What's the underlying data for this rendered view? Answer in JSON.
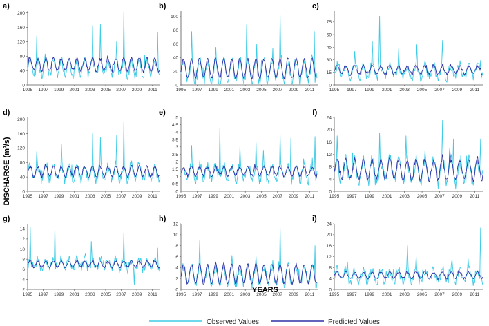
{
  "figure": {
    "xlabel": "YEARS",
    "ylabel": "DISCHARGE (m³/s)",
    "legend": {
      "observed": "Observed Values",
      "predicted": "Predicted Values",
      "position": "bottom-center"
    },
    "colors": {
      "observed": "#3ecbe6",
      "predicted": "#2b2fa6",
      "axis": "#555555"
    }
  },
  "chart_data": [
    {
      "type": "line",
      "panel": "a)",
      "x_ticks": [
        "1995",
        "1997",
        "1999",
        "2001",
        "2003",
        "2005",
        "2007",
        "2009",
        "2011"
      ],
      "y_ticks": [
        "0",
        "40",
        "80",
        "120",
        "160",
        "200"
      ],
      "ylim": [
        0,
        205
      ],
      "series": [
        {
          "name": "Observed Values",
          "base": 48,
          "amp": 20,
          "noise": 14,
          "spikes": [
            [
              1996.2,
              135
            ],
            [
              2003.3,
              165
            ],
            [
              2004.3,
              168
            ],
            [
              2007.3,
              202
            ],
            [
              2011.7,
              145
            ],
            [
              2006.4,
              120
            ]
          ]
        },
        {
          "name": "Predicted Values",
          "base": 56,
          "amp": 17,
          "noise": 5,
          "spikes": []
        }
      ]
    },
    {
      "type": "line",
      "panel": "b)",
      "x_ticks": [
        "1995",
        "1997",
        "1999",
        "2001",
        "2003",
        "2005",
        "2007",
        "2009",
        "2011"
      ],
      "y_ticks": [
        "0",
        "20",
        "40",
        "60",
        "80",
        "100"
      ],
      "ylim": [
        0,
        108
      ],
      "series": [
        {
          "name": "Observed Values",
          "base": 20,
          "amp": 16,
          "noise": 8,
          "spikes": [
            [
              1996.3,
              78
            ],
            [
              2003.2,
              88
            ],
            [
              2007.3,
              102
            ],
            [
              2011.6,
              78
            ],
            [
              1999.3,
              55
            ],
            [
              2004.4,
              60
            ]
          ]
        },
        {
          "name": "Predicted Values",
          "base": 24,
          "amp": 14,
          "noise": 2,
          "spikes": []
        }
      ]
    },
    {
      "type": "line",
      "panel": "c)",
      "x_ticks": [
        "1995",
        "1997",
        "1999",
        "2001",
        "2003",
        "2005",
        "2007",
        "2009",
        "2011"
      ],
      "y_ticks": [
        "0",
        "15",
        "30",
        "45",
        "60",
        "75"
      ],
      "ylim": [
        0,
        88
      ],
      "series": [
        {
          "name": "Observed Values",
          "base": 16,
          "amp": 7,
          "noise": 6,
          "spikes": [
            [
              2000.2,
              82
            ],
            [
              1999.3,
              52
            ],
            [
              2002.3,
              43
            ],
            [
              2004.4,
              48
            ],
            [
              2007.3,
              53
            ],
            [
              1997.3,
              40
            ]
          ]
        },
        {
          "name": "Predicted Values",
          "base": 18,
          "amp": 5,
          "noise": 2,
          "spikes": []
        }
      ]
    },
    {
      "type": "line",
      "panel": "d)",
      "x_ticks": [
        "1995",
        "1997",
        "1999",
        "2001",
        "2003",
        "2005",
        "2007",
        "2009",
        "2011"
      ],
      "y_ticks": [
        "0",
        "40",
        "80",
        "120",
        "160",
        "200"
      ],
      "ylim": [
        0,
        205
      ],
      "series": [
        {
          "name": "Observed Values",
          "base": 52,
          "amp": 20,
          "noise": 14,
          "spikes": [
            [
              1996.2,
              110
            ],
            [
              1999.3,
              130
            ],
            [
              2003.3,
              160
            ],
            [
              2004.3,
              150
            ],
            [
              2007.3,
              192
            ],
            [
              2006.4,
              155
            ]
          ]
        },
        {
          "name": "Predicted Values",
          "base": 55,
          "amp": 14,
          "noise": 4,
          "spikes": []
        }
      ]
    },
    {
      "type": "line",
      "panel": "e)",
      "x_ticks": [
        "1995",
        "1997",
        "1999",
        "2001",
        "2003",
        "2005",
        "2007",
        "2009",
        "2011"
      ],
      "y_ticks": [
        "0",
        "0,5",
        "1",
        "1,5",
        "2",
        "2,5",
        "3",
        "3,5",
        "4",
        "4,5",
        "5"
      ],
      "ylim": [
        0,
        5
      ],
      "series": [
        {
          "name": "Observed Values",
          "base": 1.25,
          "amp": 0.5,
          "noise": 0.35,
          "spikes": [
            [
              1999.8,
              4.3
            ],
            [
              1996.3,
              3.1
            ],
            [
              2002.3,
              3.0
            ],
            [
              2004.3,
              3.3
            ],
            [
              2007.3,
              3.8
            ],
            [
              2008.7,
              3.6
            ],
            [
              2011.7,
              3.7
            ]
          ]
        },
        {
          "name": "Predicted Values",
          "base": 1.35,
          "amp": 0.3,
          "noise": 0.1,
          "spikes": []
        }
      ]
    },
    {
      "type": "line",
      "panel": "f)",
      "x_ticks": [
        "1995",
        "1997",
        "1999",
        "2001",
        "2003",
        "2005",
        "2007",
        "2009",
        "2011"
      ],
      "y_ticks": [
        "0",
        "4",
        "8",
        "12",
        "16",
        "20",
        "24"
      ],
      "ylim": [
        0,
        24
      ],
      "series": [
        {
          "name": "Observed Values",
          "base": 6.5,
          "amp": 3.5,
          "noise": 2.5,
          "spikes": [
            [
              1995.3,
              18
            ],
            [
              2000.2,
              19
            ],
            [
              2003.2,
              18
            ],
            [
              2007.3,
              23
            ],
            [
              2008.6,
              17
            ],
            [
              2011.7,
              17
            ]
          ]
        },
        {
          "name": "Predicted Values",
          "base": 7,
          "amp": 3.2,
          "noise": 0.8,
          "spikes": [
            [
              2008.2,
              14
            ]
          ]
        }
      ]
    },
    {
      "type": "line",
      "panel": "g)",
      "x_ticks": [
        "1995",
        "1997",
        "1999",
        "2001",
        "2003",
        "2005",
        "2007",
        "2009",
        "2011"
      ],
      "y_ticks": [
        "2",
        "4",
        "6",
        "8",
        "10",
        "12",
        "14"
      ],
      "ylim": [
        2,
        15
      ],
      "series": [
        {
          "name": "Observed Values",
          "base": 7,
          "amp": 0.9,
          "noise": 0.9,
          "spikes": [
            [
              1995.3,
              14.3
            ],
            [
              1998.5,
              14.2
            ],
            [
              2003.2,
              11.5
            ],
            [
              2007.3,
              13.2
            ],
            [
              2008.7,
              3.0
            ],
            [
              2011.7,
              10.2
            ]
          ]
        },
        {
          "name": "Predicted Values",
          "base": 7,
          "amp": 0.6,
          "noise": 0.2,
          "spikes": []
        }
      ]
    },
    {
      "type": "line",
      "panel": "h)",
      "x_ticks": [
        "1995",
        "1997",
        "1999",
        "2001",
        "2003",
        "2005",
        "2007",
        "2009",
        "2011"
      ],
      "y_ticks": [
        "0",
        "2",
        "4",
        "6",
        "8",
        "10",
        "12"
      ],
      "ylim": [
        0,
        12
      ],
      "series": [
        {
          "name": "Observed Values",
          "base": 2.6,
          "amp": 1.6,
          "noise": 0.9,
          "spikes": [
            [
              1997.3,
              9
            ],
            [
              2007.3,
              11.3
            ],
            [
              2011.7,
              8
            ],
            [
              2001.3,
              6.2
            ],
            [
              2004.3,
              6
            ]
          ]
        },
        {
          "name": "Predicted Values",
          "base": 2.8,
          "amp": 1.8,
          "noise": 0.2,
          "spikes": []
        }
      ]
    },
    {
      "type": "line",
      "panel": "i)",
      "x_ticks": [
        "1995",
        "1997",
        "1999",
        "2001",
        "2003",
        "2005",
        "2007",
        "2009",
        "2011"
      ],
      "y_ticks": [
        "0",
        "4",
        "8",
        "12",
        "16",
        "20",
        "24"
      ],
      "ylim": [
        0,
        24
      ],
      "series": [
        {
          "name": "Observed Values",
          "base": 5,
          "amp": 2,
          "noise": 2,
          "spikes": [
            [
              2003.3,
              16
            ],
            [
              2011.7,
              22.5
            ],
            [
              2004.3,
              12
            ],
            [
              2008.4,
              11
            ]
          ]
        },
        {
          "name": "Predicted Values",
          "base": 5.2,
          "amp": 1.2,
          "noise": 0.4,
          "spikes": []
        }
      ]
    }
  ]
}
